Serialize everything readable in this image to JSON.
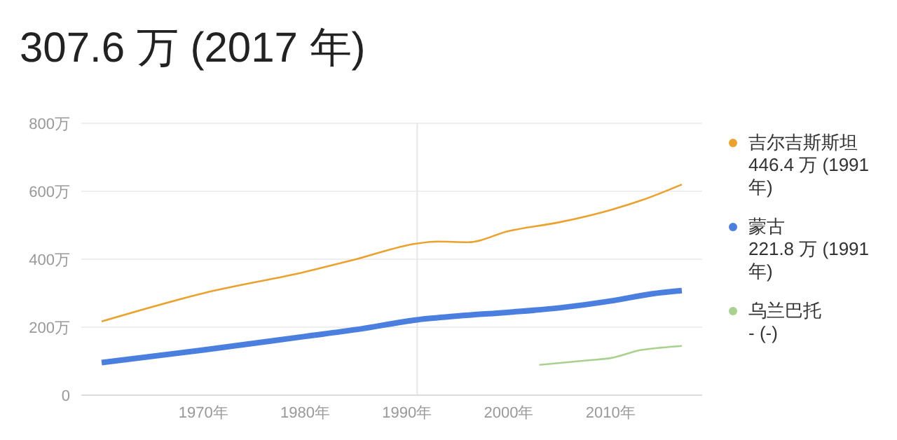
{
  "chart_data": {
    "type": "line",
    "title": "307.6 万 (2017 年)",
    "xlim": [
      1958,
      2019
    ],
    "xticks": [
      {
        "value": 1970,
        "label": "1970年"
      },
      {
        "value": 1980,
        "label": "1980年"
      },
      {
        "value": 1990,
        "label": "1990年"
      },
      {
        "value": 2000,
        "label": "2000年"
      },
      {
        "value": 2010,
        "label": "2010年"
      }
    ],
    "ylim": [
      0,
      800
    ],
    "yticks": [
      0,
      {
        "value": 200,
        "label": "200万"
      },
      {
        "value": 400,
        "label": "400万"
      },
      {
        "value": 600,
        "label": "600万"
      },
      {
        "value": 800,
        "label": "800万"
      }
    ],
    "grid": "y",
    "legend": "right",
    "marker": "none",
    "series": [
      {
        "name": "吉尔吉斯斯坦",
        "color": "#eba12c",
        "x": [
          1960,
          1970,
          1980,
          1985,
          1991,
          1993,
          1996,
          2000,
          2005,
          2010,
          2013,
          2017
        ],
        "values": [
          217,
          300,
          363,
          400,
          446.4,
          452,
          450,
          483,
          509,
          545,
          573,
          620
        ]
      },
      {
        "name": "蒙古",
        "color": "#4a7fe0",
        "x": [
          1960,
          1970,
          1980,
          1985,
          1991,
          1995,
          2000,
          2005,
          2010,
          2014,
          2017
        ],
        "values": [
          96,
          133,
          173,
          193,
          221.8,
          233,
          244,
          257,
          277,
          298,
          307.6
        ]
      },
      {
        "name": "乌兰巴托",
        "color": "#a9d18e",
        "x": [
          2003,
          2008,
          2010,
          2013,
          2015,
          2017
        ],
        "values": [
          89,
          103,
          109,
          133,
          140,
          145
        ]
      }
    ],
    "annotations": [
      "446.4 万 (1991 年)",
      "221.8 万 (1991 年)",
      "- (-)"
    ],
    "ref_lines": [
      {
        "axis": "x",
        "value": 1991,
        "color": "#e6e6e6"
      }
    ]
  }
}
